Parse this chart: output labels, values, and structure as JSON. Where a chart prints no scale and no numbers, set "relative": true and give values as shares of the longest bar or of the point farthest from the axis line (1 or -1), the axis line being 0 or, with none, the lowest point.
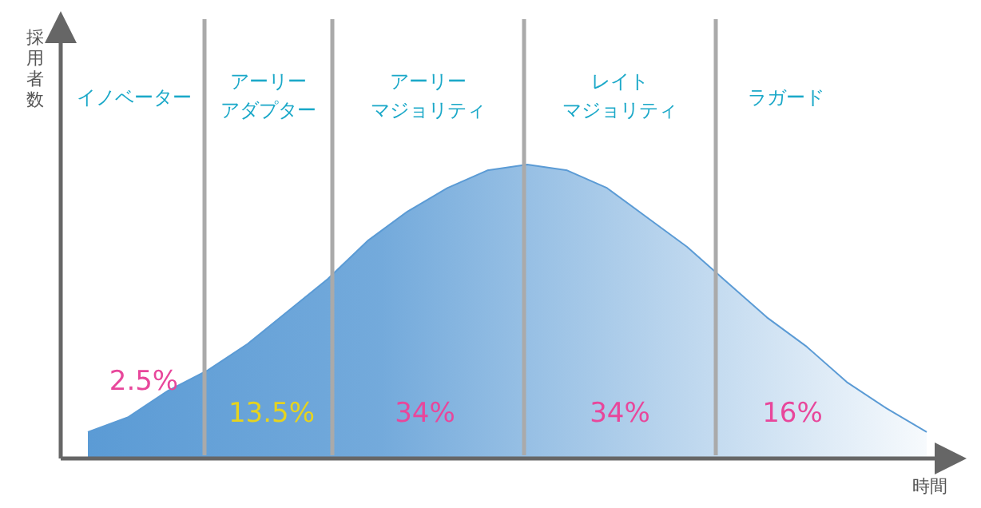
{
  "chart_data": {
    "type": "area",
    "relative": true,
    "ylabel": "採用者数",
    "xlabel": "時間",
    "categories": [
      null,
      null,
      null,
      null,
      null,
      null,
      null,
      null,
      null,
      null,
      null,
      null,
      null,
      null,
      null,
      null,
      null,
      null,
      null,
      null,
      null,
      null
    ],
    "series": [
      {
        "color": "#5b9bd5",
        "values": [
          0.09,
          0.14,
          0.23,
          0.3,
          0.39,
          0.5,
          0.61,
          0.74,
          0.84,
          0.92,
          0.98,
          1,
          0.98,
          0.92,
          0.82,
          0.72,
          0.6,
          0.48,
          0.38,
          0.26,
          0.17,
          0.09
        ]
      }
    ],
    "annotations": [
      "イノベーター",
      "アーリー",
      "アダプター",
      "アーリー",
      "マジョリティ",
      "レイト",
      "マジョリティ",
      "ラガード",
      "2.5%",
      "13.5%",
      "34%",
      "34%",
      "16%"
    ]
  }
}
